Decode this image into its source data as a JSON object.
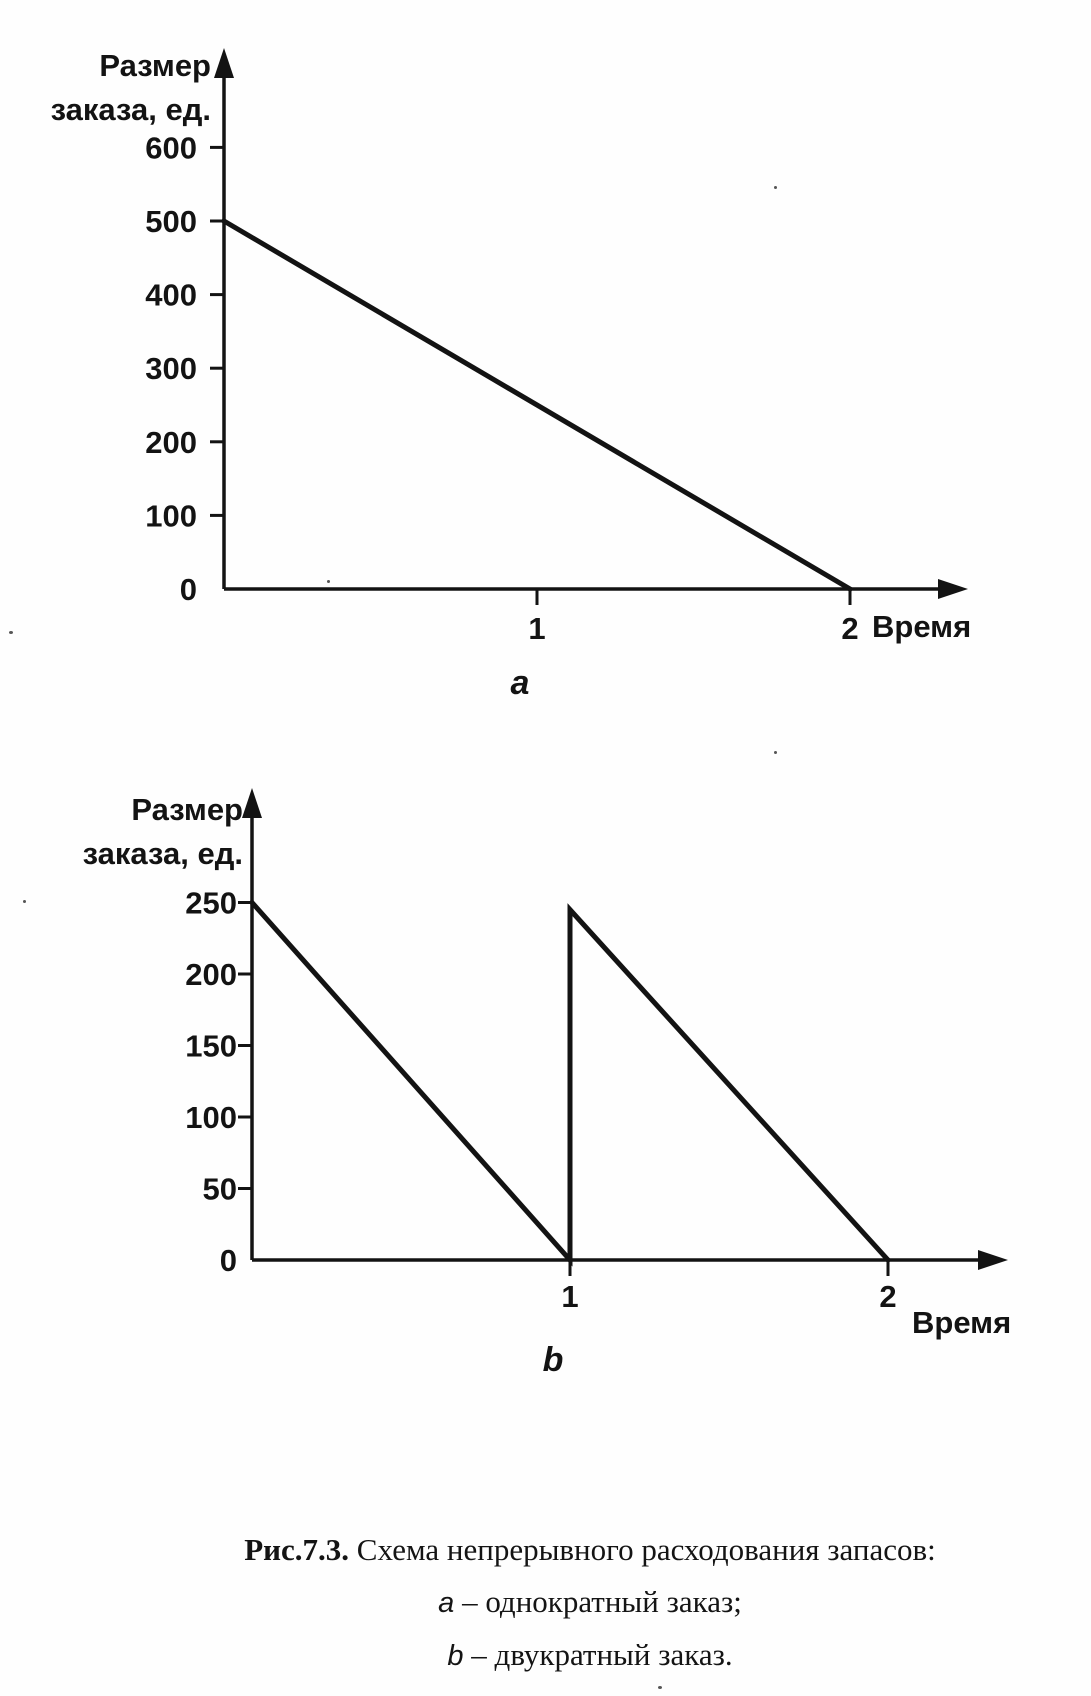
{
  "page": {
    "background": "#fefefe",
    "ink": "#131313"
  },
  "caption": {
    "prefix": "Рис.7.3.",
    "title": "Схема непрерывного расходования запасов:",
    "items": [
      {
        "letter": "а",
        "text": "– однократный заказ;"
      },
      {
        "letter": "b",
        "text": "– двукратный заказ."
      }
    ]
  },
  "chart_data": [
    {
      "type": "line",
      "panel_label": "a",
      "title": "",
      "ylabel_lines": [
        "Размер",
        "заказа, ед."
      ],
      "xlabel": "Время",
      "yticks": [
        0,
        100,
        200,
        300,
        400,
        500,
        600
      ],
      "xticks": [
        1,
        2
      ],
      "ylim": [
        0,
        660
      ],
      "xlim": [
        0,
        2.35
      ],
      "grid": false,
      "legend": "none",
      "series": [
        {
          "name": "inventory-level",
          "points": [
            [
              0,
              500
            ],
            [
              2,
              0
            ]
          ]
        }
      ]
    },
    {
      "type": "line",
      "panel_label": "b",
      "title": "",
      "ylabel_lines": [
        "Размер",
        "заказа, ед."
      ],
      "xlabel": "Время",
      "yticks": [
        0,
        50,
        100,
        150,
        200,
        250
      ],
      "xticks": [
        1,
        2
      ],
      "ylim": [
        0,
        330
      ],
      "xlim": [
        0,
        2.35
      ],
      "grid": false,
      "legend": "none",
      "series": [
        {
          "name": "inventory-level",
          "points": [
            [
              0,
              250
            ],
            [
              1,
              0
            ],
            [
              1,
              245
            ],
            [
              2,
              0
            ]
          ]
        }
      ]
    }
  ]
}
